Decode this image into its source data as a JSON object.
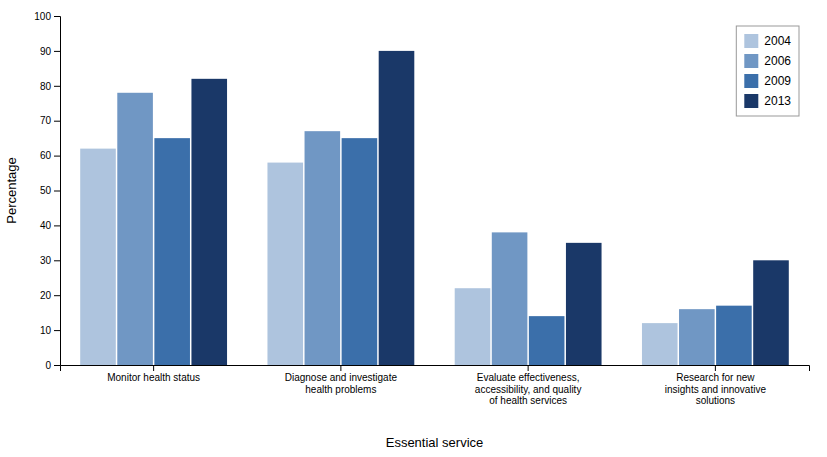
{
  "chart_data": {
    "type": "bar",
    "categories": [
      "Monitor health status",
      "Diagnose and investigate\nhealth problems",
      "Evaluate effectiveness,\naccessibility, and quality\nof health services",
      "Research for new\ninsights and innovative\nsolutions"
    ],
    "series": [
      {
        "name": "2004",
        "color": "#aec4de",
        "values": [
          62,
          58,
          22,
          12
        ]
      },
      {
        "name": "2006",
        "color": "#7097c4",
        "values": [
          78,
          67,
          38,
          16
        ]
      },
      {
        "name": "2009",
        "color": "#3b6faa",
        "values": [
          65,
          65,
          14,
          17
        ]
      },
      {
        "name": "2013",
        "color": "#1a3868",
        "values": [
          82,
          90,
          35,
          30
        ]
      }
    ],
    "xlabel": "Essential service",
    "ylabel": "Percentage",
    "ylim": [
      0,
      100
    ],
    "yticks": [
      0,
      10,
      20,
      30,
      40,
      50,
      60,
      70,
      80,
      90,
      100
    ],
    "grid": false,
    "legend": "upper right"
  }
}
